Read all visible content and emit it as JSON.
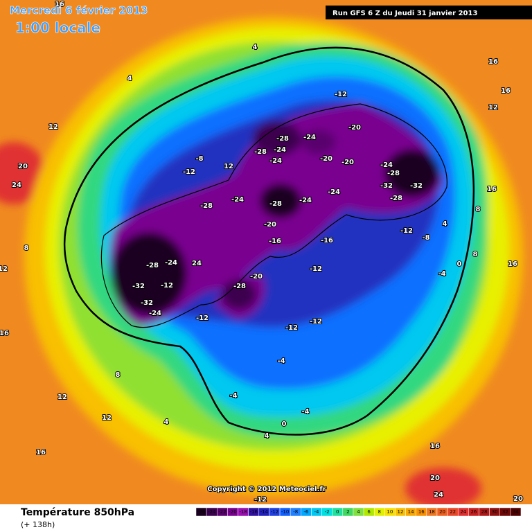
{
  "header": {
    "date": "Mercredi 6 février 2013",
    "time": "1:00 locale",
    "run": "Run GFS 6 Z du Jeudi 31 janvier 2013",
    "copyright": "Copyright © 2012 Meteociel.fr"
  },
  "footer": {
    "title": "Température 850hPa",
    "lead": "(+ 138h)"
  },
  "legend": {
    "ticks": [
      -26,
      -24,
      -22,
      -20,
      -18,
      -16,
      -14,
      -12,
      -10,
      -8,
      -6,
      -4,
      -2,
      0,
      2,
      4,
      6,
      8,
      10,
      12,
      14,
      16,
      18,
      20,
      22,
      24,
      26,
      28,
      30,
      32,
      34
    ],
    "colors": [
      "#1a0020",
      "#3c0050",
      "#5a006e",
      "#7a0090",
      "#9a10b0",
      "#3010a0",
      "#2020c0",
      "#2040e0",
      "#1060ff",
      "#2080ff",
      "#00a8ff",
      "#00c8f0",
      "#00e0e0",
      "#20e0a0",
      "#40d860",
      "#80e040",
      "#b0e800",
      "#e0f000",
      "#f8e000",
      "#f8c000",
      "#f8a800",
      "#f89000",
      "#f07820",
      "#f06020",
      "#e84828",
      "#e03030",
      "#c82020",
      "#b01818",
      "#901010",
      "#700808",
      "#500000"
    ]
  },
  "map": {
    "labels": [
      "-28",
      "-24",
      "-28",
      "-24",
      "-24",
      "-20",
      "-20",
      "-24",
      "-28",
      "-32",
      "-32",
      "-28",
      "-28",
      "-24",
      "-24",
      "-24",
      "-28",
      "-20",
      "-16",
      "-16",
      "-12",
      "-8",
      "-12",
      "-12",
      "-12",
      "-28",
      "-24",
      "24",
      "-32",
      "-32",
      "-24",
      "-12",
      "-12",
      "-20",
      "-28",
      "-4",
      "-4",
      "-4",
      "-4",
      "0",
      "4",
      "4",
      "8",
      "12",
      "16",
      "12",
      "12",
      "8",
      "12",
      "16",
      "20",
      "24",
      "4",
      "4",
      "16",
      "-12",
      "-20",
      "-12",
      "-8",
      "12",
      "16",
      "16",
      "12",
      "16",
      "8",
      "4",
      "16",
      "8",
      "0",
      "20",
      "24",
      "20",
      "16",
      "-12"
    ]
  }
}
